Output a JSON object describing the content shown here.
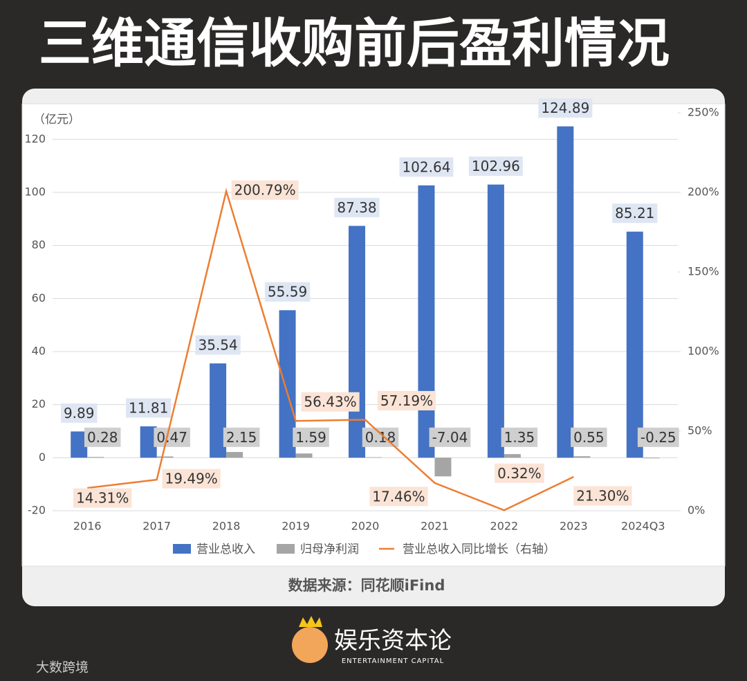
{
  "chart_data": {
    "type": "bar",
    "title": "三维通信收购前后盈利情况",
    "y_axis_label": "（亿元）",
    "categories": [
      "2016",
      "2017",
      "2018",
      "2019",
      "2020",
      "2021",
      "2022",
      "2023",
      "2024Q3"
    ],
    "series": [
      {
        "name": "营业总收入",
        "type": "bar",
        "color": "#4472c4",
        "values": [
          9.89,
          11.81,
          35.54,
          55.59,
          87.38,
          102.64,
          102.96,
          124.89,
          85.21
        ]
      },
      {
        "name": "归母净利润",
        "type": "bar",
        "color": "#a5a5a5",
        "values": [
          0.28,
          0.47,
          2.15,
          1.59,
          0.18,
          -7.04,
          1.35,
          0.55,
          -0.25
        ]
      },
      {
        "name": "营业总收入同比增长（右轴）",
        "type": "line",
        "axis": "y2",
        "color": "#ed7d31",
        "values": [
          14.31,
          19.49,
          200.79,
          56.43,
          57.19,
          17.46,
          0.32,
          21.3,
          null
        ],
        "value_labels": [
          "14.31%",
          "19.49%",
          "200.79%",
          "56.43%",
          "57.19%",
          "17.46%",
          "0.32%",
          "21.30%",
          null
        ]
      }
    ],
    "ylim": [
      -20,
      130
    ],
    "yticks": [
      -20,
      0,
      20,
      40,
      60,
      80,
      100,
      120
    ],
    "y2lim": [
      0,
      250
    ],
    "y2ticks": [
      {
        "value": 0,
        "label": "0%"
      },
      {
        "value": 50,
        "label": "50%"
      },
      {
        "value": 100,
        "label": "100%"
      },
      {
        "value": 150,
        "label": "150%"
      },
      {
        "value": 200,
        "label": "200%"
      },
      {
        "value": 250,
        "label": "250%"
      }
    ],
    "grid": true,
    "legend": "bottom"
  },
  "source": "数据来源：同花顺iFind",
  "logo": {
    "name": "娱乐资本论",
    "tagline": "ENTERTAINMENT CAPITAL"
  },
  "watermark": "大数跨境"
}
